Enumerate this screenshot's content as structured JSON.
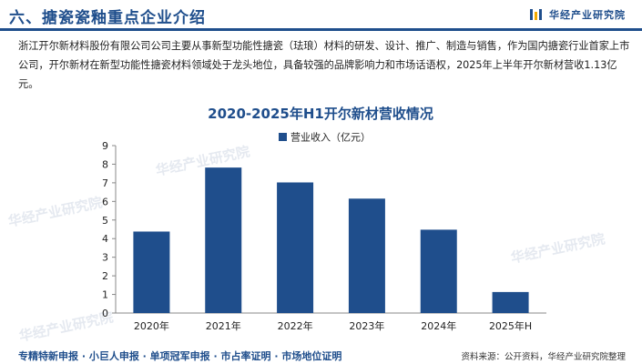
{
  "header": {
    "title": "六、搪瓷瓷釉重点企业介绍",
    "brand": "华经产业研究院"
  },
  "intro": {
    "text": "浙江开尔新材料股份有限公司公司主要从事新型功能性搪瓷（珐琅）材料的研发、设计、推广、制造与销售，作为国内搪瓷行业首家上市公司，开尔新材在新型功能性搪瓷材料领域处于龙头地位，具备较强的品牌影响力和市场话语权，2025年上半年开尔新材营收1.13亿元。"
  },
  "watermark": "华经产业研究院",
  "chart_data": {
    "type": "bar",
    "title": "2020-2025年H1开尔新材营收情况",
    "categories": [
      "2020年",
      "2021年",
      "2022年",
      "2023年",
      "2024年",
      "2025年H"
    ],
    "series": [
      {
        "name": "营业收入（亿元）",
        "values": [
          4.38,
          7.82,
          7.02,
          6.15,
          4.48,
          1.13
        ]
      }
    ],
    "ylim": [
      0,
      9
    ],
    "yticks": [
      0,
      1,
      2,
      3,
      4,
      5,
      6,
      7,
      8,
      9
    ],
    "legend": "top",
    "grid": false,
    "bar_color": "#1f4e8c"
  },
  "footer": {
    "services": "专精特新申报 · 小巨人申报 · 单项冠军申报 · 市占率证明 · 市场地位证明",
    "source": "资料来源：公开资料，华经产业研究院整理"
  }
}
